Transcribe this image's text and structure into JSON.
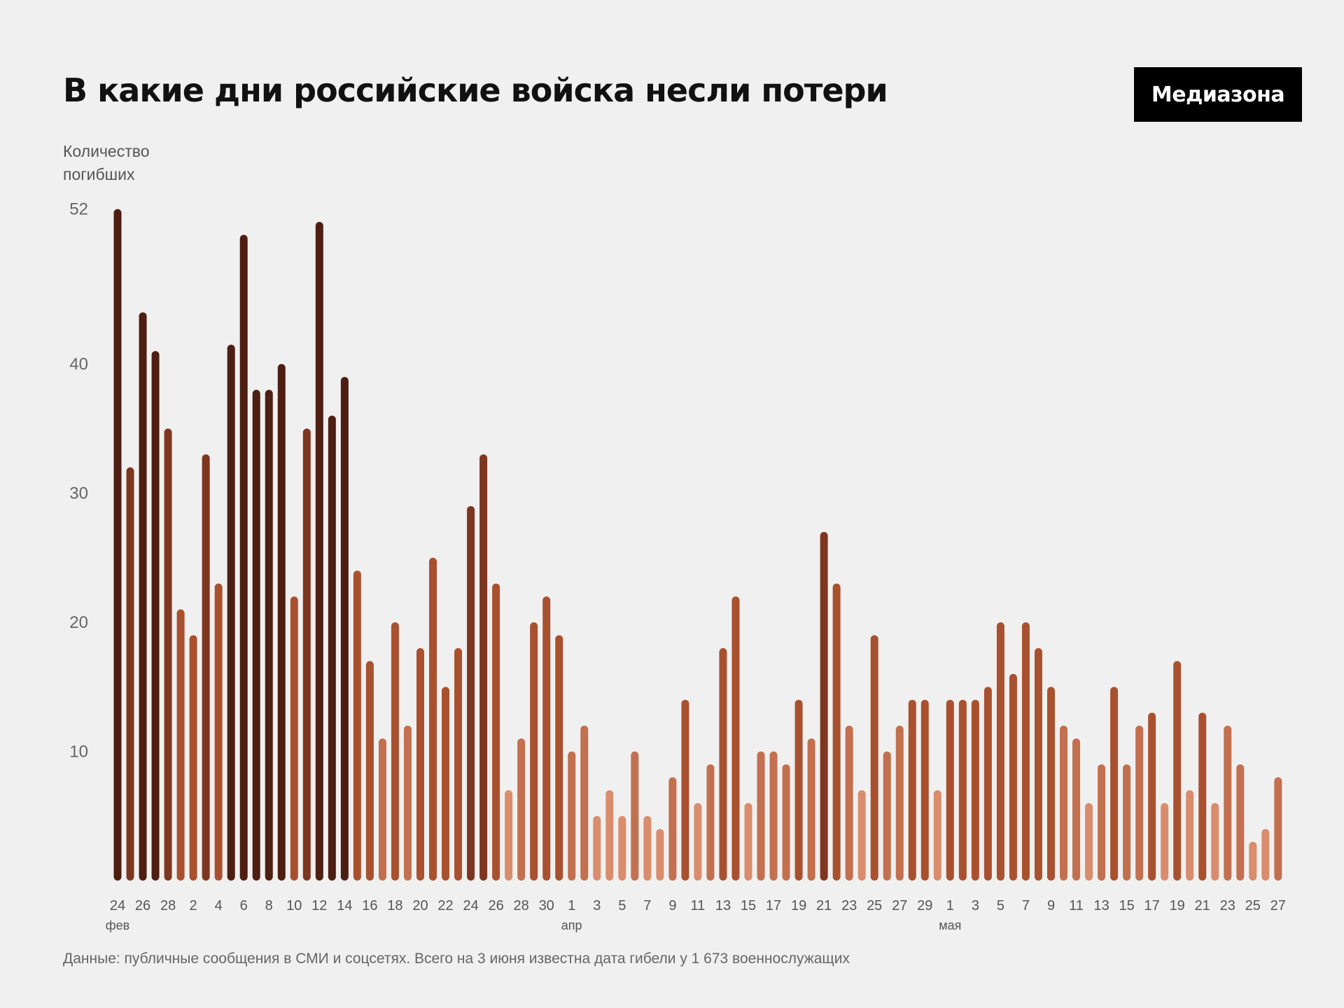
{
  "title": "В какие дни российские войска несли потери",
  "logo": "Медиазона",
  "ylabel": "Количество\nпогибших",
  "source": "Данные: публичные сообщения в СМИ и соцсетях. Всего на 3 июня известна дата гибели у 1 673 военнослужащих",
  "colors": {
    "background": "#f0f0f0",
    "scale": [
      "#d98d6d",
      "#c2704f",
      "#a9512f",
      "#7e3620",
      "#4e1e12"
    ]
  },
  "chart_data": {
    "type": "bar",
    "xlabel": "",
    "ylabel": "Количество погибших",
    "ylim": [
      0,
      52
    ],
    "y_ticks": [
      10,
      20,
      30,
      40,
      52
    ],
    "x_tick_labels": [
      "24",
      "26",
      "28",
      "2",
      "4",
      "6",
      "8",
      "10",
      "12",
      "14",
      "16",
      "18",
      "20",
      "22",
      "24",
      "26",
      "28",
      "30",
      "1",
      "3",
      "5",
      "7",
      "9",
      "11",
      "13",
      "15",
      "17",
      "19",
      "21",
      "23",
      "25",
      "27",
      "29",
      "1",
      "3",
      "5",
      "7",
      "9",
      "11",
      "13",
      "15",
      "17",
      "19",
      "21",
      "23",
      "25",
      "27"
    ],
    "month_labels": [
      {
        "label": "фев",
        "tick_index": 0
      },
      {
        "label": "апр",
        "tick_index": 18
      },
      {
        "label": "мая",
        "tick_index": 33
      }
    ],
    "values": [
      52,
      32,
      44,
      41,
      35,
      21,
      19,
      33,
      23,
      41.5,
      50,
      38,
      38,
      40,
      22,
      35,
      51,
      36,
      39,
      24,
      17,
      11,
      20,
      12,
      18,
      25,
      15,
      18,
      29,
      33,
      23,
      7,
      11,
      20,
      22,
      19,
      10,
      12,
      5,
      7,
      5,
      10,
      5,
      4,
      8,
      14,
      6,
      9,
      18,
      22,
      6,
      10,
      10,
      9,
      14,
      11,
      27,
      23,
      12,
      7,
      19,
      10,
      12,
      14,
      14,
      7,
      14,
      14,
      14,
      15,
      20,
      16,
      20,
      18,
      15,
      12,
      11,
      6,
      9,
      15,
      9,
      12,
      13,
      6,
      17,
      7,
      13,
      6,
      12,
      9,
      3,
      4,
      8
    ],
    "grid": false
  }
}
